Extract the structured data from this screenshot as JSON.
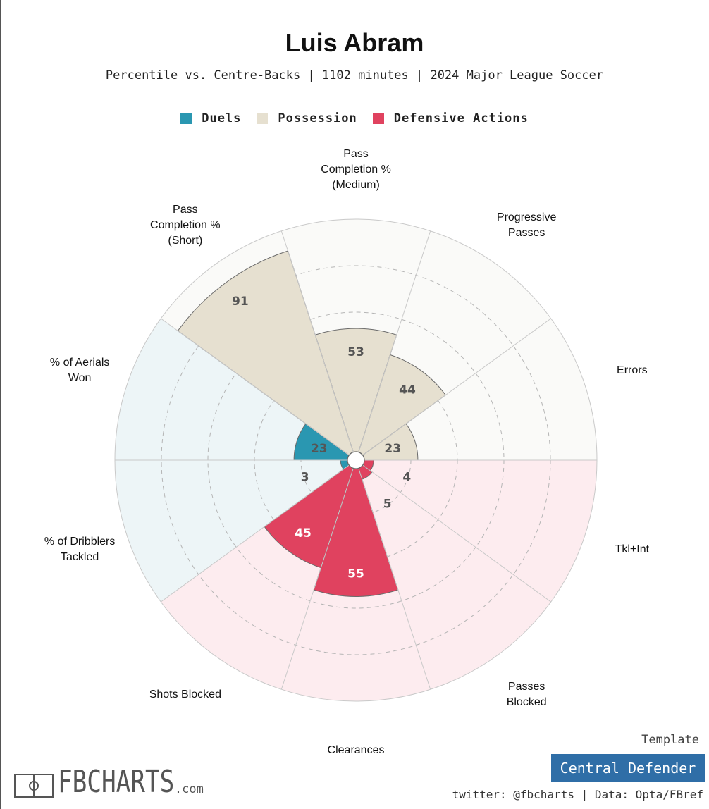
{
  "header": {
    "title": "Luis Abram",
    "subtitle": "Percentile vs. Centre-Backs | 1102 minutes | 2024 Major League Soccer"
  },
  "legend": [
    {
      "label": "Duels",
      "color": "#2a97b1"
    },
    {
      "label": "Possession",
      "color": "#e6e0d0"
    },
    {
      "label": "Defensive Actions",
      "color": "#e0425f"
    }
  ],
  "chart_data": {
    "type": "radial-bar",
    "title": "Luis Abram",
    "range": [
      0,
      100
    ],
    "categories": [
      {
        "label": "Pass\nCompletion %\n(Medium)",
        "value": 53,
        "group": "Possession"
      },
      {
        "label": "Progressive\nPasses",
        "value": 44,
        "group": "Possession"
      },
      {
        "label": "Errors",
        "value": 23,
        "group": "Possession"
      },
      {
        "label": "Tkl+Int",
        "value": 4,
        "group": "Defensive Actions"
      },
      {
        "label": "Passes\nBlocked",
        "value": 5,
        "group": "Defensive Actions"
      },
      {
        "label": "Clearances",
        "value": 55,
        "group": "Defensive Actions"
      },
      {
        "label": "Shots Blocked",
        "value": 45,
        "group": "Defensive Actions"
      },
      {
        "label": "% of Dribblers\nTackled",
        "value": 3,
        "group": "Duels"
      },
      {
        "label": "% of Aerials\nWon",
        "value": 23,
        "group": "Duels"
      },
      {
        "label": "Pass\nCompletion %\n(Short)",
        "value": 91,
        "group": "Possession"
      }
    ],
    "group_colors": {
      "Possession": {
        "fill": "#e6e0d0",
        "background": "#fafaf8",
        "text": "#555555"
      },
      "Defensive Actions": {
        "fill": "#e0425f",
        "background": "#fdecef",
        "text": "#ffffff"
      },
      "Duels": {
        "fill": "#2a97b1",
        "background": "#edf5f7",
        "text": "#555555"
      }
    }
  },
  "footer": {
    "template_caption": "Template",
    "template_name": "Central Defender",
    "credits": "twitter: @fbcharts | Data: Opta/FBref",
    "brand": "FBCHARTS",
    "brand_suffix": ".com"
  }
}
